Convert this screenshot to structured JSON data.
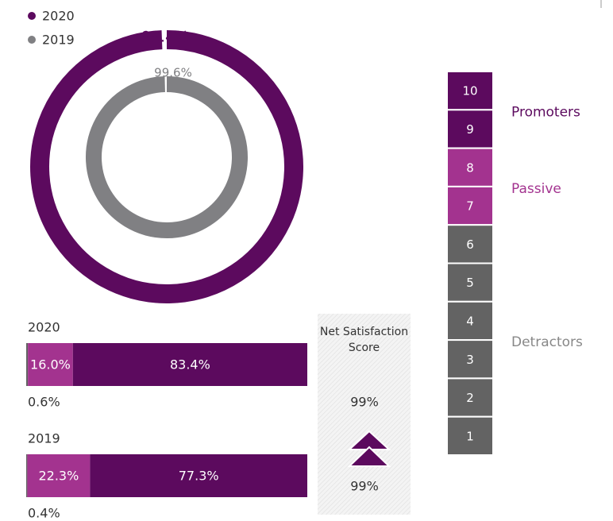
{
  "chart_data": [
    {
      "type": "donut",
      "categories": [
        "2020",
        "2019"
      ],
      "values": [
        99.4,
        99.6
      ],
      "value_labels": [
        "99.4%",
        "99.6%"
      ],
      "colors": [
        "#5c0a5e",
        "#808083"
      ]
    },
    {
      "type": "stacked-bar",
      "categories": [
        "2020",
        "2019"
      ],
      "xlim": [
        0,
        100
      ],
      "series": [
        {
          "color": "#636363",
          "values": [
            0.6,
            0.4
          ],
          "value_labels": [
            "0.6%",
            "0.4%"
          ]
        },
        {
          "color": "#a3338f",
          "values": [
            16.0,
            22.3
          ],
          "value_labels": [
            "16.0%",
            "22.3%"
          ]
        },
        {
          "color": "#5c0a5e",
          "values": [
            83.4,
            77.3
          ],
          "value_labels": [
            "83.4%",
            "77.3%"
          ]
        }
      ]
    }
  ],
  "net_satisfaction_score": {
    "title": "Net Satisfaction Score",
    "values": [
      "99%",
      "99%"
    ]
  },
  "scale": {
    "groups": [
      {
        "name": "Promoters",
        "color": "#5c0a5e",
        "items": [
          10,
          9
        ]
      },
      {
        "name": "Passive",
        "color": "#a3338f",
        "items": [
          8,
          7
        ]
      },
      {
        "name": "Detractors",
        "color": "#636363",
        "items": [
          6,
          5,
          4,
          3,
          2,
          1
        ]
      }
    ]
  }
}
